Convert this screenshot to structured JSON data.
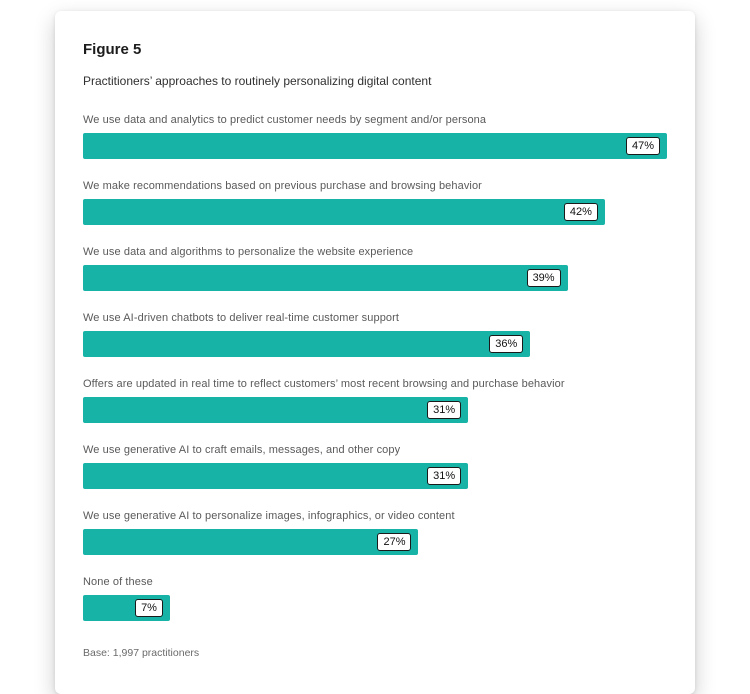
{
  "figure": {
    "title": "Figure 5",
    "subtitle": "Practitioners’ approaches to routinely personalizing digital content",
    "base_note": "Base: 1,997 practitioners"
  },
  "colors": {
    "bar": "#17B3A7",
    "badge_border": "#1a1a1a",
    "badge_background": "#ffffff"
  },
  "chart_data": {
    "type": "bar",
    "orientation": "horizontal",
    "title": "Figure 5",
    "subtitle": "Practitioners’ approaches to routinely personalizing digital content",
    "categories": [
      "We use data and analytics to predict customer needs by segment and/or persona",
      "We make recommendations based on previous purchase and browsing behavior",
      "We use data and algorithms to personalize the website experience",
      "We use AI-driven chatbots to deliver real-time customer support",
      "Offers are updated in real time to reflect customers’ most recent browsing and purchase behavior",
      "We use generative AI to craft emails, messages, and other copy",
      "We use generative AI to personalize images, infographics, or video content",
      "None of these"
    ],
    "values": [
      47,
      42,
      39,
      36,
      31,
      31,
      27,
      7
    ],
    "value_labels": [
      "47%",
      "42%",
      "39%",
      "36%",
      "31%",
      "31%",
      "27%",
      "7%"
    ],
    "xlabel": "",
    "ylabel": "",
    "xlim": [
      0,
      47
    ],
    "grid": false,
    "legend": false,
    "note": "Base: 1,997 practitioners"
  }
}
